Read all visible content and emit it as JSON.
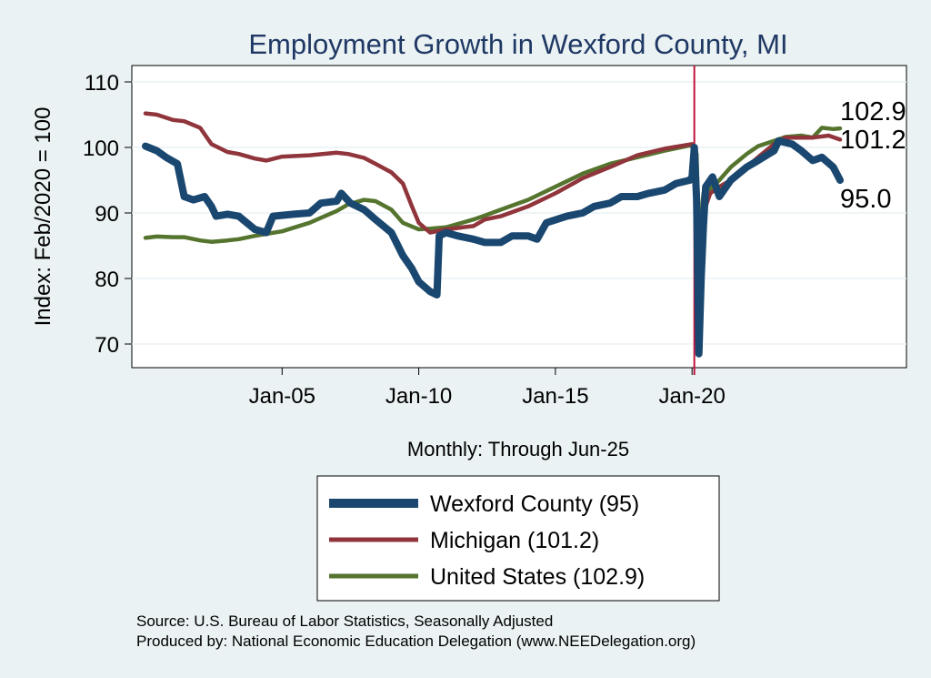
{
  "chart_data": {
    "type": "line",
    "title": "Employment Growth in Wexford  County, MI",
    "ylabel": "Index: Feb/2020 = 100",
    "xlabel": "Monthly: Through Jun-25",
    "ylim": [
      66,
      112
    ],
    "y_ticks": [
      70,
      80,
      90,
      100,
      110
    ],
    "x_ticks": [
      {
        "date": "2005-01",
        "label": "Jan-05"
      },
      {
        "date": "2010-01",
        "label": "Jan-10"
      },
      {
        "date": "2015-01",
        "label": "Jan-15"
      },
      {
        "date": "2020-01",
        "label": "Jan-20"
      }
    ],
    "xlim": [
      "2000-01",
      "2028-07"
    ],
    "vline_date": "2020-02",
    "grid": true,
    "legend_position": "bottom",
    "series": [
      {
        "name": "Wexford  County (95)",
        "color": "#1a476f",
        "end_label": "95.0",
        "points": [
          [
            "2000-01",
            100.2
          ],
          [
            "2000-06",
            99.5
          ],
          [
            "2000-10",
            98.5
          ],
          [
            "2001-03",
            97.5
          ],
          [
            "2001-06",
            92.5
          ],
          [
            "2001-10",
            92.0
          ],
          [
            "2002-03",
            92.5
          ],
          [
            "2002-06",
            91.0
          ],
          [
            "2002-08",
            89.5
          ],
          [
            "2003-01",
            89.8
          ],
          [
            "2003-06",
            89.5
          ],
          [
            "2004-01",
            87.5
          ],
          [
            "2004-06",
            87.0
          ],
          [
            "2004-09",
            89.5
          ],
          [
            "2005-06",
            89.8
          ],
          [
            "2006-01",
            90.0
          ],
          [
            "2006-06",
            91.5
          ],
          [
            "2007-01",
            91.8
          ],
          [
            "2007-03",
            93.0
          ],
          [
            "2007-07",
            91.5
          ],
          [
            "2008-01",
            90.5
          ],
          [
            "2008-06",
            89.0
          ],
          [
            "2009-01",
            87.0
          ],
          [
            "2009-06",
            83.5
          ],
          [
            "2009-10",
            81.5
          ],
          [
            "2010-01",
            79.5
          ],
          [
            "2010-06",
            78.0
          ],
          [
            "2010-09",
            77.5
          ],
          [
            "2010-10",
            86.5
          ],
          [
            "2011-01",
            87.0
          ],
          [
            "2011-06",
            86.5
          ],
          [
            "2012-01",
            86.0
          ],
          [
            "2012-06",
            85.5
          ],
          [
            "2013-01",
            85.5
          ],
          [
            "2013-06",
            86.5
          ],
          [
            "2014-01",
            86.5
          ],
          [
            "2014-05",
            86.0
          ],
          [
            "2014-09",
            88.5
          ],
          [
            "2015-06",
            89.5
          ],
          [
            "2016-01",
            90.0
          ],
          [
            "2016-06",
            91.0
          ],
          [
            "2017-01",
            91.5
          ],
          [
            "2017-06",
            92.5
          ],
          [
            "2018-01",
            92.5
          ],
          [
            "2018-06",
            93.0
          ],
          [
            "2019-01",
            93.5
          ],
          [
            "2019-06",
            94.5
          ],
          [
            "2019-12",
            95.0
          ],
          [
            "2020-01",
            95.5
          ],
          [
            "2020-02",
            100.0
          ],
          [
            "2020-03",
            92.0
          ],
          [
            "2020-04",
            68.5
          ],
          [
            "2020-05",
            80.0
          ],
          [
            "2020-06",
            88.0
          ],
          [
            "2020-07",
            94.0
          ],
          [
            "2020-10",
            95.5
          ],
          [
            "2021-01",
            92.5
          ],
          [
            "2021-06",
            95.0
          ],
          [
            "2022-01",
            97.0
          ],
          [
            "2022-06",
            98.0
          ],
          [
            "2023-01",
            99.5
          ],
          [
            "2023-03",
            101.0
          ],
          [
            "2023-09",
            100.5
          ],
          [
            "2024-01",
            99.5
          ],
          [
            "2024-06",
            98.0
          ],
          [
            "2024-10",
            98.5
          ],
          [
            "2025-03",
            97.0
          ],
          [
            "2025-06",
            95.0
          ]
        ]
      },
      {
        "name": "Michigan (101.2)",
        "color": "#90353b",
        "end_label": "101.2",
        "points": [
          [
            "2000-01",
            105.2
          ],
          [
            "2000-06",
            105.0
          ],
          [
            "2001-01",
            104.2
          ],
          [
            "2001-06",
            104.0
          ],
          [
            "2002-01",
            103.0
          ],
          [
            "2002-06",
            100.5
          ],
          [
            "2003-01",
            99.3
          ],
          [
            "2003-06",
            99.0
          ],
          [
            "2004-01",
            98.3
          ],
          [
            "2004-06",
            98.0
          ],
          [
            "2005-01",
            98.6
          ],
          [
            "2006-01",
            98.8
          ],
          [
            "2007-01",
            99.2
          ],
          [
            "2007-06",
            99.0
          ],
          [
            "2008-01",
            98.4
          ],
          [
            "2008-06",
            97.5
          ],
          [
            "2009-01",
            96.2
          ],
          [
            "2009-06",
            94.5
          ],
          [
            "2009-10",
            91.0
          ],
          [
            "2010-01",
            88.5
          ],
          [
            "2010-06",
            87.0
          ],
          [
            "2011-01",
            87.5
          ],
          [
            "2012-01",
            88.0
          ],
          [
            "2012-06",
            89.0
          ],
          [
            "2013-01",
            89.5
          ],
          [
            "2014-01",
            91.0
          ],
          [
            "2015-01",
            93.0
          ],
          [
            "2016-01",
            95.3
          ],
          [
            "2017-01",
            97.0
          ],
          [
            "2018-01",
            98.8
          ],
          [
            "2019-01",
            99.8
          ],
          [
            "2020-01",
            100.5
          ],
          [
            "2020-02",
            100.0
          ],
          [
            "2020-03",
            96.0
          ],
          [
            "2020-04",
            74.0
          ],
          [
            "2020-05",
            83.0
          ],
          [
            "2020-06",
            90.0
          ],
          [
            "2020-09",
            93.0
          ],
          [
            "2021-01",
            94.0
          ],
          [
            "2021-06",
            95.0
          ],
          [
            "2022-01",
            97.0
          ],
          [
            "2022-06",
            98.5
          ],
          [
            "2023-01",
            100.5
          ],
          [
            "2023-06",
            101.5
          ],
          [
            "2024-01",
            101.5
          ],
          [
            "2024-06",
            101.5
          ],
          [
            "2025-01",
            101.8
          ],
          [
            "2025-06",
            101.2
          ]
        ]
      },
      {
        "name": "United States (102.9)",
        "color": "#55752f",
        "end_label": "102.9",
        "points": [
          [
            "2000-01",
            86.2
          ],
          [
            "2000-06",
            86.4
          ],
          [
            "2001-01",
            86.3
          ],
          [
            "2001-06",
            86.3
          ],
          [
            "2002-01",
            85.8
          ],
          [
            "2002-06",
            85.6
          ],
          [
            "2003-01",
            85.8
          ],
          [
            "2003-06",
            86.0
          ],
          [
            "2004-01",
            86.5
          ],
          [
            "2004-06",
            86.8
          ],
          [
            "2005-01",
            87.2
          ],
          [
            "2006-01",
            88.5
          ],
          [
            "2007-01",
            90.3
          ],
          [
            "2007-06",
            91.3
          ],
          [
            "2008-01",
            92.0
          ],
          [
            "2008-06",
            91.8
          ],
          [
            "2009-01",
            90.5
          ],
          [
            "2009-06",
            88.5
          ],
          [
            "2010-01",
            87.5
          ],
          [
            "2010-06",
            87.6
          ],
          [
            "2011-01",
            87.8
          ],
          [
            "2011-06",
            88.3
          ],
          [
            "2012-01",
            89.0
          ],
          [
            "2012-06",
            89.6
          ],
          [
            "2013-01",
            90.5
          ],
          [
            "2014-01",
            92.0
          ],
          [
            "2015-01",
            94.0
          ],
          [
            "2016-01",
            96.0
          ],
          [
            "2017-01",
            97.5
          ],
          [
            "2018-01",
            98.5
          ],
          [
            "2019-01",
            99.5
          ],
          [
            "2019-12",
            100.3
          ],
          [
            "2020-02",
            100.0
          ],
          [
            "2020-03",
            99.0
          ],
          [
            "2020-04",
            86.0
          ],
          [
            "2020-05",
            89.0
          ],
          [
            "2020-06",
            93.0
          ],
          [
            "2020-10",
            94.0
          ],
          [
            "2021-01",
            95.0
          ],
          [
            "2021-06",
            97.0
          ],
          [
            "2022-01",
            99.0
          ],
          [
            "2022-06",
            100.2
          ],
          [
            "2023-01",
            101.0
          ],
          [
            "2023-06",
            101.6
          ],
          [
            "2024-01",
            101.8
          ],
          [
            "2024-06",
            101.5
          ],
          [
            "2024-10",
            103.0
          ],
          [
            "2025-03",
            102.8
          ],
          [
            "2025-06",
            102.9
          ]
        ]
      }
    ]
  },
  "legend": {
    "items": [
      {
        "label": "Wexford  County (95)",
        "color": "#1a476f",
        "stroke_width": 10
      },
      {
        "label": "Michigan (101.2)",
        "color": "#90353b",
        "stroke_width": 5
      },
      {
        "label": "United States (102.9)",
        "color": "#55752f",
        "stroke_width": 5
      }
    ]
  },
  "footer": {
    "source": "Source: U.S. Bureau of Labor Statistics, Seasonally Adjusted",
    "produced_by": "Produced by: National Economic Education Delegation (www.NEEDelegation.org)"
  },
  "colors": {
    "background": "#eaf2f3",
    "plot_area": "#ffffff",
    "title": "#1f3864",
    "vline": "#c0143c"
  }
}
